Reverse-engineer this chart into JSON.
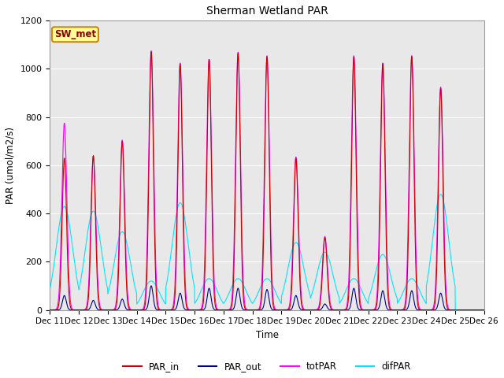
{
  "title": "Sherman Wetland PAR",
  "ylabel": "PAR (umol/m2/s)",
  "xlabel": "Time",
  "annotation": "SW_met",
  "ylim": [
    0,
    1200
  ],
  "bg_color": "#e8e8e8",
  "colors": {
    "PAR_in": "#cc0000",
    "PAR_out": "#00008b",
    "totPAR": "#ff00ff",
    "difPAR": "#00e5ff"
  },
  "legend_labels": [
    "PAR_in",
    "PAR_out",
    "totPAR",
    "difPAR"
  ],
  "x_tick_labels": [
    "Dec 11",
    "Dec 12",
    "Dec 13",
    "Dec 14",
    "Dec 15",
    "Dec 16",
    "Dec 17",
    "Dec 18",
    "Dec 19",
    "Dec 20",
    "Dec 21",
    "Dec 22",
    "Dec 23",
    "Dec 24",
    "Dec 25",
    "Dec 26"
  ],
  "day_peaks_in": [
    630,
    640,
    700,
    1070,
    1020,
    1040,
    1065,
    1050,
    630,
    300,
    1050,
    1020,
    1050,
    920,
    0
  ],
  "day_peaks_tot": [
    775,
    640,
    705,
    1075,
    1025,
    1040,
    1070,
    1055,
    635,
    305,
    1055,
    1025,
    1055,
    925,
    0
  ],
  "day_peaks_out": [
    60,
    40,
    45,
    100,
    70,
    90,
    90,
    85,
    60,
    25,
    90,
    80,
    80,
    70,
    0
  ],
  "day_peaks_dif": [
    430,
    410,
    325,
    120,
    445,
    130,
    130,
    130,
    280,
    240,
    130,
    230,
    130,
    480,
    0
  ],
  "figsize": [
    6.4,
    4.8
  ],
  "dpi": 100
}
